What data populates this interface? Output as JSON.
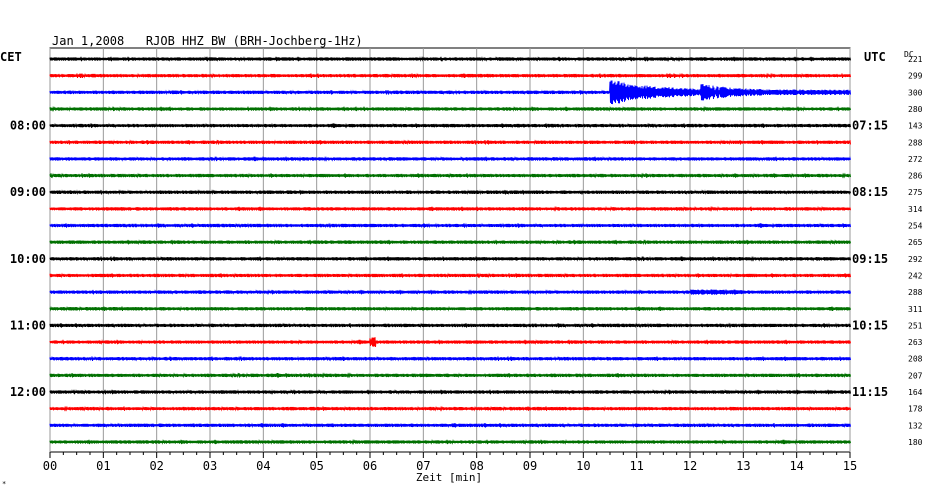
{
  "chart_data": {
    "type": "line",
    "title": "Jan 1,2008   RJOB HHZ BW (BRH-Jochberg-1Hz)",
    "left_label": "CET",
    "right_label": "UTC",
    "dc_label": "DC",
    "xlabel": "Zeit [min]",
    "x_ticks": [
      "00",
      "01",
      "02",
      "03",
      "04",
      "05",
      "06",
      "07",
      "08",
      "09",
      "10",
      "11",
      "12",
      "13",
      "14",
      "15"
    ],
    "xlim": [
      0,
      15
    ],
    "trace_colors": [
      "#000000",
      "#ff0000",
      "#0000ff",
      "#007000"
    ],
    "hour_labels_left": [
      {
        "trace": 4,
        "label": "08:00"
      },
      {
        "trace": 8,
        "label": "09:00"
      },
      {
        "trace": 12,
        "label": "10:00"
      },
      {
        "trace": 16,
        "label": "11:00"
      },
      {
        "trace": 20,
        "label": "12:00"
      }
    ],
    "hour_labels_right": [
      {
        "trace": 4,
        "label": "07:15"
      },
      {
        "trace": 8,
        "label": "08:15"
      },
      {
        "trace": 12,
        "label": "09:15"
      },
      {
        "trace": 16,
        "label": "10:15"
      },
      {
        "trace": 20,
        "label": "11:15"
      }
    ],
    "dc_offsets": [
      221,
      299,
      300,
      280,
      143,
      288,
      272,
      286,
      275,
      314,
      254,
      265,
      292,
      242,
      288,
      311,
      251,
      263,
      208,
      207,
      164,
      178,
      132,
      180
    ],
    "events": [
      {
        "trace": 2,
        "start_min": 10.5,
        "end_min": 15,
        "amplitude": "large"
      },
      {
        "trace": 14,
        "start_min": 12.0,
        "end_min": 13.0,
        "amplitude": "small"
      },
      {
        "trace": 17,
        "start_min": 6.0,
        "end_min": 6.1,
        "amplitude": "spike"
      }
    ]
  }
}
